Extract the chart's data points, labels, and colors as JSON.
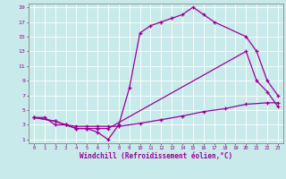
{
  "xlabel": "Windchill (Refroidissement éolien,°C)",
  "bg_color": "#c8eaea",
  "line_color": "#990099",
  "grid_color": "#aad4d4",
  "xlim": [
    -0.5,
    23.5
  ],
  "ylim": [
    0.5,
    19.5
  ],
  "xticks": [
    0,
    1,
    2,
    3,
    4,
    5,
    6,
    7,
    8,
    9,
    10,
    11,
    12,
    13,
    14,
    15,
    16,
    17,
    18,
    19,
    20,
    21,
    22,
    23
  ],
  "yticks": [
    1,
    3,
    5,
    7,
    9,
    11,
    13,
    15,
    17,
    19
  ],
  "line1_x": [
    0,
    1,
    2,
    3,
    4,
    5,
    6,
    7,
    8,
    9,
    10,
    11,
    12,
    13,
    14,
    15,
    16,
    17,
    20,
    21,
    22,
    23
  ],
  "line1_y": [
    4,
    4,
    3,
    3,
    2.5,
    2.5,
    2,
    1,
    3,
    8,
    15.5,
    16.5,
    17,
    17.5,
    18,
    19,
    18,
    17,
    15,
    13,
    9,
    7
  ],
  "line2_x": [
    0,
    2,
    3,
    4,
    5,
    6,
    7,
    20,
    21,
    22,
    23
  ],
  "line2_y": [
    4,
    3.5,
    3,
    2.5,
    2.5,
    2.5,
    2.5,
    13,
    9,
    7.5,
    5.5
  ],
  "line3_x": [
    0,
    2,
    3,
    4,
    5,
    6,
    7,
    8,
    10,
    12,
    14,
    16,
    18,
    20,
    22,
    23
  ],
  "line3_y": [
    4,
    3.5,
    3,
    2.8,
    2.8,
    2.8,
    2.8,
    2.8,
    3.2,
    3.7,
    4.2,
    4.8,
    5.2,
    5.8,
    6.0,
    6.0
  ]
}
